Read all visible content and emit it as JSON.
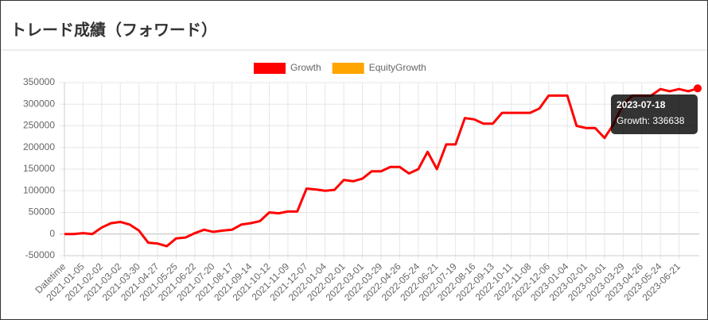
{
  "chart_data": {
    "type": "line",
    "title": "トレード成績（フォワード）",
    "categories": [
      "Datetime",
      null,
      "2021-01-05",
      null,
      "2021-02-02",
      null,
      "2021-03-02",
      null,
      "2021-03-30",
      null,
      "2021-04-27",
      null,
      "2021-05-25",
      null,
      "2021-06-22",
      null,
      "2021-07-20",
      null,
      "2021-08-17",
      null,
      "2021-09-14",
      null,
      "2021-10-12",
      null,
      "2021-11-09",
      null,
      "2021-12-07",
      null,
      "2022-01-04",
      null,
      "2022-02-01",
      null,
      "2022-03-01",
      null,
      "2022-03-29",
      null,
      "2022-04-26",
      null,
      "2022-05-24",
      null,
      "2022-06-21",
      null,
      "2022-07-19",
      null,
      "2022-08-16",
      null,
      "2022-09-13",
      null,
      "2022-10-11",
      null,
      "2022-11-08",
      null,
      "2022-12-06",
      null,
      "2023-01-04",
      null,
      "2023-02-01",
      null,
      "2023-03-01",
      null,
      "2023-03-29",
      null,
      "2023-04-26",
      null,
      "2023-05-24",
      null,
      "2023-06-21",
      null,
      null
    ],
    "series": [
      {
        "name": "Growth",
        "color": "#ff0000",
        "values": [
          0,
          0,
          2000,
          0,
          15000,
          25000,
          28000,
          22000,
          8000,
          -20000,
          -22000,
          -28000,
          -10000,
          -8000,
          2000,
          10000,
          5000,
          8000,
          10000,
          22000,
          25000,
          30000,
          50000,
          48000,
          52000,
          52000,
          105000,
          103000,
          100000,
          102000,
          125000,
          122000,
          128000,
          145000,
          145000,
          155000,
          155000,
          140000,
          150000,
          190000,
          150000,
          207000,
          207000,
          268000,
          265000,
          255000,
          255000,
          280000,
          280000,
          280000,
          280000,
          290000,
          320000,
          320000,
          320000,
          250000,
          245000,
          245000,
          222000,
          255000,
          300000,
          320000,
          320000,
          320000,
          335000,
          330000,
          335000,
          330000,
          336638
        ]
      },
      {
        "name": "EquityGrowth",
        "color": "#ffa500"
      }
    ],
    "ylim": [
      -50000,
      350000
    ],
    "yticks": [
      -50000,
      0,
      50000,
      100000,
      150000,
      200000,
      250000,
      300000,
      350000
    ],
    "grid": true,
    "legend": "top",
    "tooltip": {
      "title": "2023-07-18",
      "text": "Growth: 336638"
    }
  }
}
